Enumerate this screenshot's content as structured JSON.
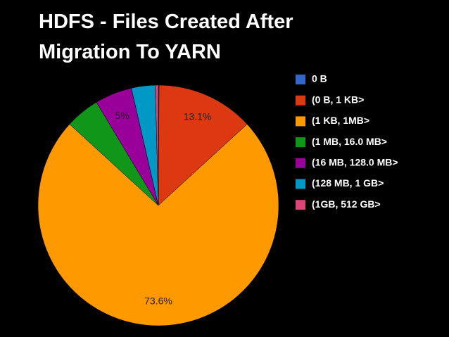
{
  "chart_data": {
    "type": "pie",
    "title_lines": [
      "HDFS - Files Created After",
      "Migration To YARN"
    ],
    "categories": [
      "0 B",
      "(0 B, 1 KB>",
      "(1 KB, 1MB>",
      "(1 MB, 16.0 MB>",
      "(16 MB, 128.0 MB>",
      "(128 MB, 1 GB>",
      "(1GB, 512 GB>"
    ],
    "values": [
      0.1,
      13.1,
      73.6,
      4.6,
      5.0,
      3.2,
      0.4
    ],
    "value_labels": [
      null,
      "13.1%",
      "73.6%",
      null,
      "5%",
      null,
      null
    ],
    "colors": [
      "#3366cc",
      "#dc3912",
      "#ff9900",
      "#109618",
      "#990099",
      "#0099c6",
      "#dd4477"
    ],
    "legend": "right"
  }
}
